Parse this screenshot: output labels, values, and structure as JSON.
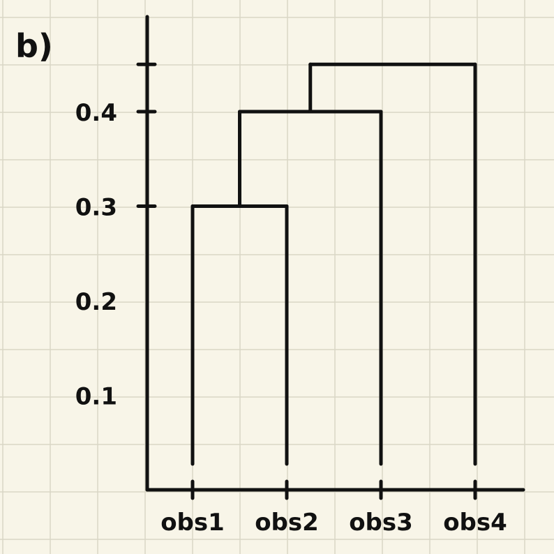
{
  "panel_label": "b)",
  "colors": {
    "paper": "#f8f5e8",
    "grid": "#d9d6c6",
    "ink": "#111111"
  },
  "dendrogram": {
    "y_ticks": [
      0.1,
      0.2,
      0.3,
      0.4
    ],
    "y_tick_labels": [
      "0.1",
      "0.2",
      "0.3",
      "0.4"
    ],
    "leaves": [
      "obs1",
      "obs2",
      "obs3",
      "obs4"
    ],
    "merges": [
      {
        "left": "obs1",
        "right": "obs2",
        "height": 0.3
      },
      {
        "left": "obs1+obs2",
        "right": "obs3",
        "height": 0.4
      },
      {
        "left": "obs1+obs2+obs3",
        "right": "obs4",
        "height": 0.45
      }
    ]
  }
}
